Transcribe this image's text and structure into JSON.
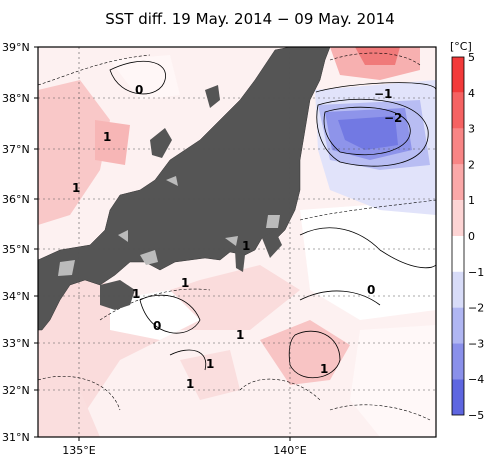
{
  "title": "SST diff. 19 May. 2014 − 09 May. 2014",
  "colorbar": {
    "unit": "[°C]",
    "labels": [
      "5",
      "4",
      "3",
      "2",
      "1",
      "0",
      "−1",
      "−2",
      "−3",
      "−4",
      "−5"
    ],
    "colors": [
      "#f23a3a",
      "#f56262",
      "#f88585",
      "#fba8a8",
      "#fdd4d4",
      "#ffffff",
      "#d8dcf8",
      "#b0b6f2",
      "#8a90ea",
      "#5e66e0",
      "#2430d4"
    ]
  },
  "lat_labels": [
    "39°N",
    "38°N",
    "37°N",
    "36°N",
    "35°N",
    "34°N",
    "33°N",
    "32°N",
    "31°N"
  ],
  "lon_labels": [
    "135°E",
    "140°E"
  ],
  "contour_labels": [
    "0",
    "−1",
    "−2",
    "1",
    "1",
    "1",
    "1",
    "1",
    "0",
    "0",
    "1",
    "1",
    "1",
    "1"
  ],
  "land_color": "#555555"
}
